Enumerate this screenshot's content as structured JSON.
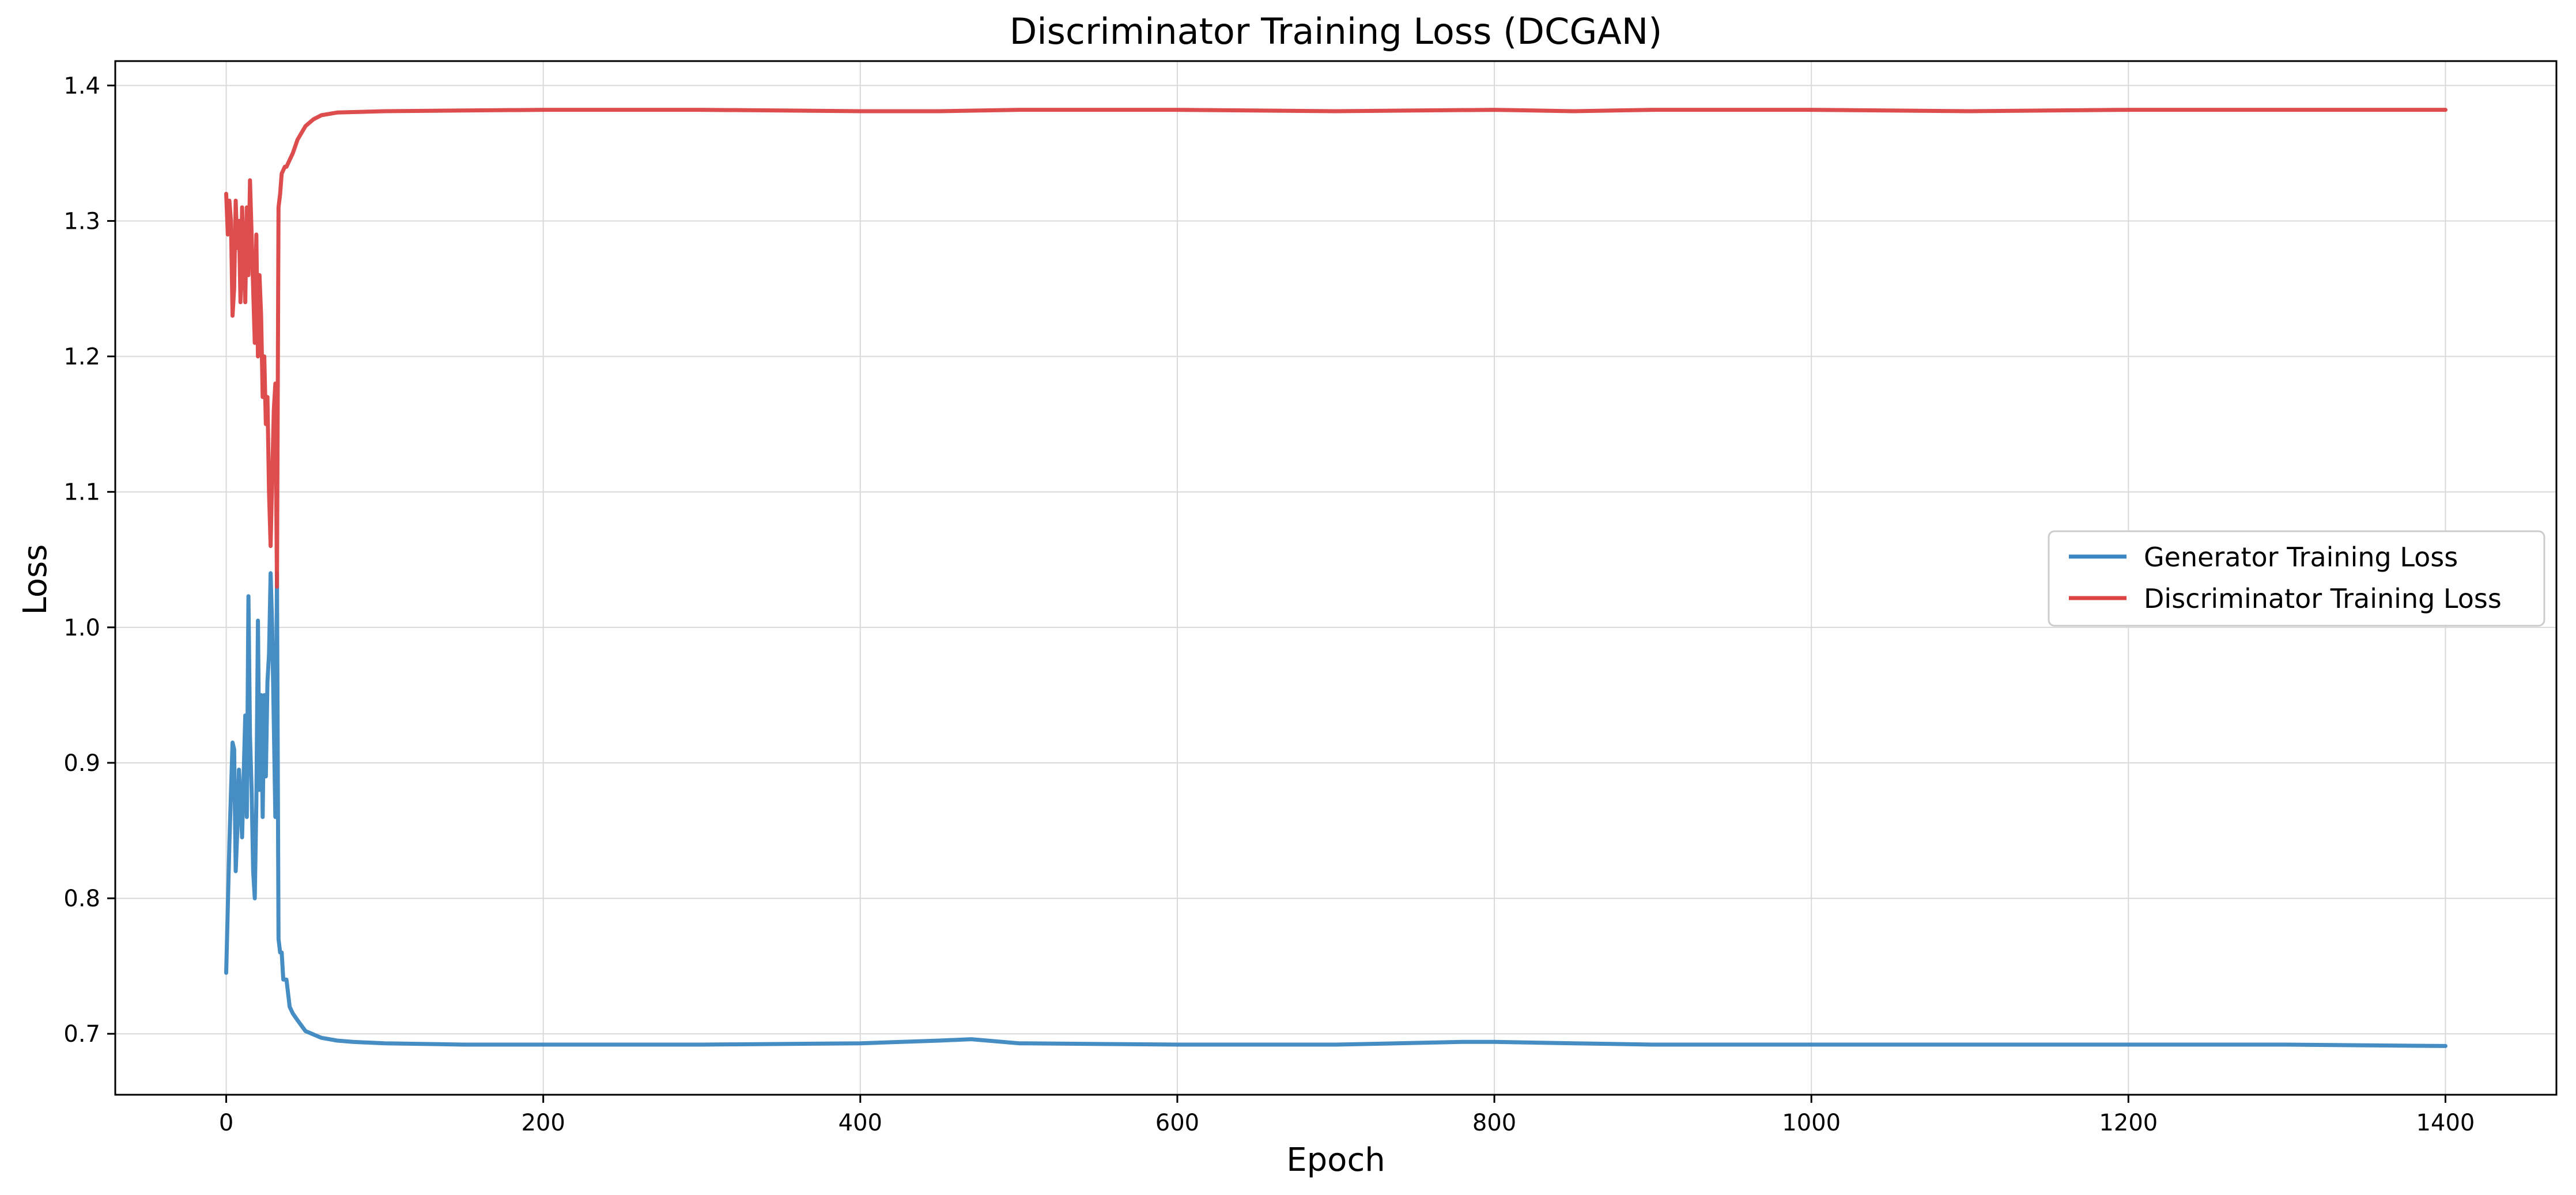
{
  "chart_data": {
    "type": "line",
    "title": "Discriminator Training Loss (DCGAN)",
    "xlabel": "Epoch",
    "ylabel": "Loss",
    "xlim": [
      -70,
      1470
    ],
    "ylim": [
      0.655,
      1.418
    ],
    "xticks": [
      0,
      200,
      400,
      600,
      800,
      1000,
      1200,
      1400
    ],
    "yticks": [
      0.7,
      0.8,
      0.9,
      1.0,
      1.1,
      1.2,
      1.3,
      1.4
    ],
    "grid": true,
    "legend_position": "center-right",
    "series": [
      {
        "name": "Generator Training Loss",
        "color": "#3c87c1",
        "points": [
          [
            0,
            0.745
          ],
          [
            2,
            0.84
          ],
          [
            4,
            0.915
          ],
          [
            5,
            0.91
          ],
          [
            6,
            0.82
          ],
          [
            7,
            0.85
          ],
          [
            8,
            0.895
          ],
          [
            9,
            0.87
          ],
          [
            10,
            0.845
          ],
          [
            11,
            0.89
          ],
          [
            12,
            0.935
          ],
          [
            13,
            0.86
          ],
          [
            14,
            1.023
          ],
          [
            15,
            0.92
          ],
          [
            16,
            0.88
          ],
          [
            17,
            0.82
          ],
          [
            18,
            0.8
          ],
          [
            19,
            0.87
          ],
          [
            20,
            1.005
          ],
          [
            21,
            0.88
          ],
          [
            22,
            0.95
          ],
          [
            23,
            0.86
          ],
          [
            24,
            0.95
          ],
          [
            25,
            0.89
          ],
          [
            26,
            0.96
          ],
          [
            27,
            0.98
          ],
          [
            28,
            1.04
          ],
          [
            29,
            1.0
          ],
          [
            30,
            0.93
          ],
          [
            31,
            0.86
          ],
          [
            32,
            1.04
          ],
          [
            33,
            0.77
          ],
          [
            34,
            0.76
          ],
          [
            35,
            0.76
          ],
          [
            36,
            0.74
          ],
          [
            38,
            0.74
          ],
          [
            40,
            0.72
          ],
          [
            42,
            0.715
          ],
          [
            45,
            0.71
          ],
          [
            50,
            0.702
          ],
          [
            60,
            0.697
          ],
          [
            70,
            0.695
          ],
          [
            80,
            0.694
          ],
          [
            100,
            0.693
          ],
          [
            150,
            0.692
          ],
          [
            200,
            0.692
          ],
          [
            300,
            0.692
          ],
          [
            400,
            0.693
          ],
          [
            450,
            0.695
          ],
          [
            470,
            0.696
          ],
          [
            500,
            0.693
          ],
          [
            600,
            0.692
          ],
          [
            700,
            0.692
          ],
          [
            780,
            0.694
          ],
          [
            800,
            0.694
          ],
          [
            850,
            0.693
          ],
          [
            900,
            0.692
          ],
          [
            1000,
            0.692
          ],
          [
            1100,
            0.692
          ],
          [
            1200,
            0.692
          ],
          [
            1300,
            0.692
          ],
          [
            1400,
            0.691
          ]
        ]
      },
      {
        "name": "Discriminator Training Loss",
        "color": "#db4345",
        "points": [
          [
            0,
            1.32
          ],
          [
            1,
            1.29
          ],
          [
            2,
            1.315
          ],
          [
            3,
            1.3
          ],
          [
            4,
            1.23
          ],
          [
            5,
            1.25
          ],
          [
            6,
            1.315
          ],
          [
            7,
            1.28
          ],
          [
            8,
            1.3
          ],
          [
            9,
            1.24
          ],
          [
            10,
            1.31
          ],
          [
            11,
            1.27
          ],
          [
            12,
            1.24
          ],
          [
            13,
            1.31
          ],
          [
            14,
            1.26
          ],
          [
            15,
            1.33
          ],
          [
            16,
            1.29
          ],
          [
            17,
            1.25
          ],
          [
            18,
            1.21
          ],
          [
            19,
            1.29
          ],
          [
            20,
            1.2
          ],
          [
            21,
            1.26
          ],
          [
            22,
            1.23
          ],
          [
            23,
            1.17
          ],
          [
            24,
            1.2
          ],
          [
            25,
            1.15
          ],
          [
            26,
            1.17
          ],
          [
            27,
            1.1
          ],
          [
            28,
            1.06
          ],
          [
            29,
            1.11
          ],
          [
            30,
            1.16
          ],
          [
            31,
            1.18
          ],
          [
            32,
            1.03
          ],
          [
            33,
            1.31
          ],
          [
            34,
            1.32
          ],
          [
            35,
            1.335
          ],
          [
            37,
            1.34
          ],
          [
            38,
            1.34
          ],
          [
            40,
            1.345
          ],
          [
            42,
            1.35
          ],
          [
            45,
            1.36
          ],
          [
            50,
            1.37
          ],
          [
            55,
            1.375
          ],
          [
            60,
            1.378
          ],
          [
            70,
            1.38
          ],
          [
            100,
            1.381
          ],
          [
            200,
            1.382
          ],
          [
            300,
            1.382
          ],
          [
            400,
            1.381
          ],
          [
            450,
            1.381
          ],
          [
            500,
            1.382
          ],
          [
            600,
            1.382
          ],
          [
            700,
            1.381
          ],
          [
            800,
            1.382
          ],
          [
            850,
            1.381
          ],
          [
            900,
            1.382
          ],
          [
            1000,
            1.382
          ],
          [
            1100,
            1.381
          ],
          [
            1200,
            1.382
          ],
          [
            1300,
            1.382
          ],
          [
            1400,
            1.382
          ]
        ]
      }
    ]
  },
  "colors": {
    "axis": "#000000",
    "grid": "#d9d9d9",
    "legend_border": "#cccccc"
  }
}
